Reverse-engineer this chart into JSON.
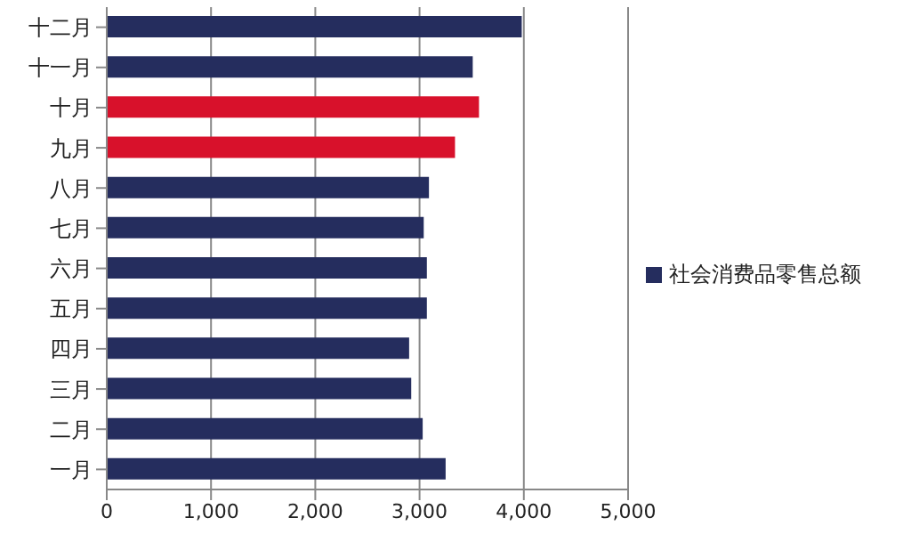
{
  "chart_data": {
    "type": "bar",
    "orientation": "horizontal",
    "categories": [
      "十二月",
      "十一月",
      "十月",
      "九月",
      "八月",
      "七月",
      "六月",
      "五月",
      "四月",
      "三月",
      "二月",
      "一月"
    ],
    "series": [
      {
        "name": "社会消费品零售总额",
        "color": "#252d5e",
        "colors": [
          "#252d5e",
          "#252d5e",
          "#d8112b",
          "#d8112b",
          "#252d5e",
          "#252d5e",
          "#252d5e",
          "#252d5e",
          "#252d5e",
          "#252d5e",
          "#252d5e",
          "#252d5e"
        ],
        "values": [
          3980,
          3510,
          3570,
          3340,
          3090,
          3040,
          3070,
          3070,
          2900,
          2920,
          3030,
          3250
        ]
      }
    ],
    "xlim": [
      0,
      5000
    ],
    "xticks": [
      {
        "value": 0,
        "label": "0"
      },
      {
        "value": 1000,
        "label": "1,000"
      },
      {
        "value": 2000,
        "label": "2,000"
      },
      {
        "value": 3000,
        "label": "3,000"
      },
      {
        "value": 4000,
        "label": "4,000"
      },
      {
        "value": 5000,
        "label": "5,000"
      }
    ],
    "grid": "x",
    "legend": "right"
  }
}
